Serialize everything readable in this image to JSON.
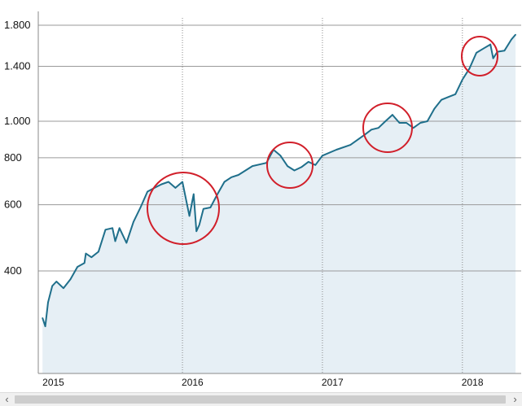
{
  "chart_data": {
    "type": "line",
    "title": "",
    "xlabel": "",
    "ylabel": "",
    "yscale": "log",
    "ylim": [
      270,
      1900
    ],
    "yticks": [
      400,
      600,
      800,
      1000,
      1400,
      1800
    ],
    "ytick_labels": [
      "400",
      "600",
      "800",
      "1.000",
      "1.400",
      "1.800"
    ],
    "xlim": [
      2014.97,
      2018.42
    ],
    "xticks": [
      2015,
      2016,
      2017,
      2018
    ],
    "xtick_labels": [
      "2015",
      "2016",
      "2017",
      "2018"
    ],
    "grid": true,
    "series": [
      {
        "color": "#1f6f8b",
        "x": [
          2015.0,
          2015.02,
          2015.04,
          2015.07,
          2015.1,
          2015.15,
          2015.2,
          2015.25,
          2015.3,
          2015.31,
          2015.35,
          2015.4,
          2015.45,
          2015.5,
          2015.52,
          2015.55,
          2015.6,
          2015.65,
          2015.7,
          2015.75,
          2015.8,
          2015.85,
          2015.9,
          2015.95,
          2016.0,
          2016.05,
          2016.08,
          2016.1,
          2016.12,
          2016.15,
          2016.2,
          2016.25,
          2016.3,
          2016.35,
          2016.4,
          2016.5,
          2016.6,
          2016.65,
          2016.7,
          2016.75,
          2016.8,
          2016.85,
          2016.9,
          2016.95,
          2017.0,
          2017.1,
          2017.2,
          2017.3,
          2017.35,
          2017.4,
          2017.45,
          2017.5,
          2017.55,
          2017.6,
          2017.65,
          2017.7,
          2017.75,
          2017.8,
          2017.85,
          2017.9,
          2017.95,
          2018.0,
          2018.05,
          2018.1,
          2018.15,
          2018.2,
          2018.22,
          2018.25,
          2018.3,
          2018.35,
          2018.38
        ],
        "y": [
          300,
          285,
          330,
          365,
          375,
          360,
          380,
          410,
          420,
          445,
          435,
          450,
          515,
          520,
          480,
          520,
          475,
          540,
          590,
          650,
          665,
          680,
          690,
          665,
          690,
          560,
          640,
          510,
          530,
          585,
          590,
          640,
          690,
          710,
          720,
          760,
          775,
          840,
          810,
          760,
          740,
          755,
          780,
          765,
          810,
          840,
          865,
          920,
          950,
          960,
          1000,
          1040,
          990,
          990,
          960,
          990,
          1000,
          1080,
          1140,
          1160,
          1180,
          1290,
          1380,
          1520,
          1560,
          1600,
          1470,
          1530,
          1540,
          1650,
          1700
        ]
      }
    ]
  },
  "ui": {
    "scroll_left_glyph": "‹",
    "scroll_right_glyph": "›"
  }
}
